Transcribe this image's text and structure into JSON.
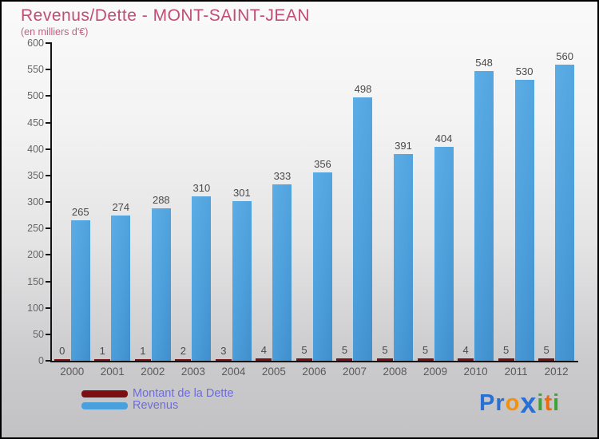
{
  "header": {
    "title": "Revenus/Dette - MONT-SAINT-JEAN",
    "subtitle": "(en milliers d'€)"
  },
  "chart_data": {
    "type": "bar",
    "categories": [
      "2000",
      "2001",
      "2002",
      "2003",
      "2004",
      "2005",
      "2006",
      "2007",
      "2008",
      "2009",
      "2010",
      "2011",
      "2012"
    ],
    "series": [
      {
        "name": "Montant de la Dette",
        "color": "#7a1013",
        "values": [
          0,
          1,
          1,
          2,
          3,
          4,
          5,
          5,
          5,
          5,
          4,
          5,
          5
        ]
      },
      {
        "name": "Revenus",
        "color": "#4d9fdb",
        "values": [
          265,
          274,
          288,
          310,
          301,
          333,
          356,
          498,
          391,
          404,
          548,
          530,
          560
        ]
      }
    ],
    "title": "Revenus/Dette - MONT-SAINT-JEAN",
    "subtitle": "(en milliers d'€)",
    "xlabel": "",
    "ylabel": "",
    "ylim": [
      0,
      600
    ],
    "yticks": [
      0,
      50,
      100,
      150,
      200,
      250,
      300,
      350,
      400,
      450,
      500,
      550,
      600
    ],
    "grid": false,
    "legend_position": "bottom-left"
  },
  "colors": {
    "title": "#c14d72",
    "dette_bar": "#7a1013",
    "revenus_bar": "#4d9fdb",
    "legend_text": "#6e6cd8",
    "axis": "#141414",
    "tick_label": "#666666",
    "value_label": "#4a4a4a"
  },
  "logo": {
    "text": "Proxiti",
    "letters": [
      {
        "ch": "P",
        "color": "#2a6fd2",
        "big": false
      },
      {
        "ch": "r",
        "color": "#2a6fd2",
        "big": false
      },
      {
        "ch": "o",
        "color": "#f1910e",
        "big": false
      },
      {
        "ch": "x",
        "color": "#2a6fd2",
        "big": true
      },
      {
        "ch": "i",
        "color": "#3aa434",
        "big": false
      },
      {
        "ch": "t",
        "color": "#e96c12",
        "big": false
      },
      {
        "ch": "i",
        "color": "#3aa434",
        "big": false
      }
    ]
  }
}
